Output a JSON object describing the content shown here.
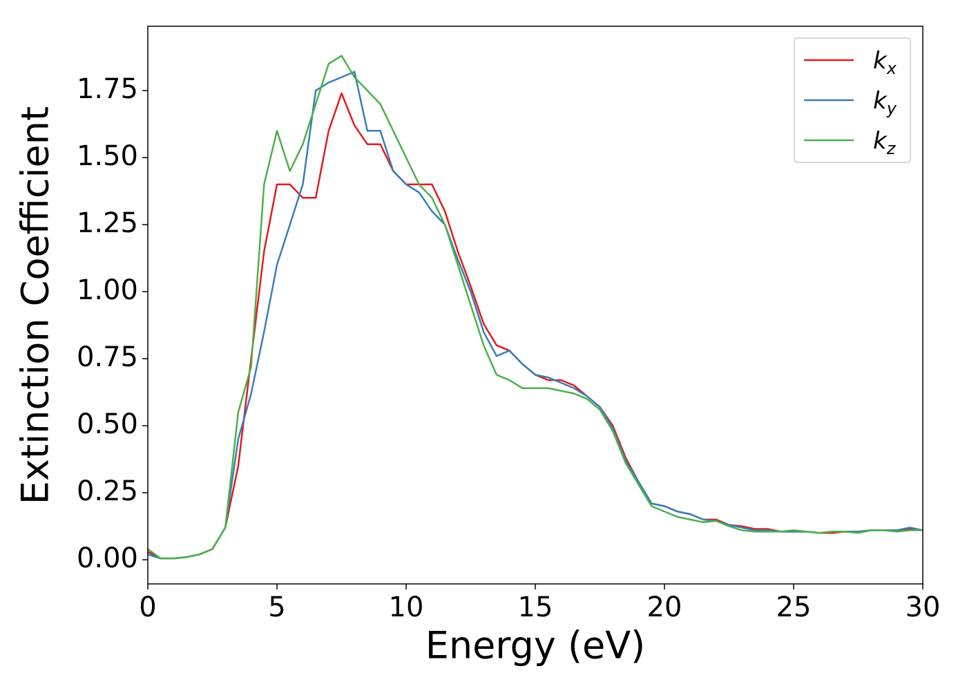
{
  "chart_data": {
    "type": "line",
    "x_label": "Energy (eV)",
    "y_label": "Extinction Coefficient",
    "xlim": [
      0,
      30
    ],
    "ylim": [
      -0.09,
      1.99
    ],
    "xticks": [
      0,
      5,
      10,
      15,
      20,
      25,
      30
    ],
    "yticks": [
      {
        "value": 0,
        "label": "0.00"
      },
      {
        "value": 0.25,
        "label": "0.25"
      },
      {
        "value": 0.5,
        "label": "0.50"
      },
      {
        "value": 0.75,
        "label": "0.75"
      },
      {
        "value": 1,
        "label": "1.00"
      },
      {
        "value": 1.25,
        "label": "1.25"
      },
      {
        "value": 1.5,
        "label": "1.50"
      },
      {
        "value": 1.75,
        "label": "1.75"
      }
    ],
    "grid": false,
    "legend": "upper right",
    "x": [
      0,
      0.5,
      1,
      1.5,
      2,
      2.5,
      3,
      3.5,
      4,
      4.5,
      5,
      5.5,
      6,
      6.5,
      7,
      7.5,
      8,
      8.5,
      9,
      9.5,
      10,
      10.5,
      11,
      11.5,
      12,
      12.5,
      13,
      13.5,
      14,
      14.5,
      15,
      15.5,
      16,
      16.5,
      17,
      17.5,
      18,
      18.5,
      19,
      19.5,
      20,
      20.5,
      21,
      21.5,
      22,
      22.5,
      23,
      23.5,
      24,
      24.5,
      25,
      25.5,
      26,
      26.5,
      27,
      27.5,
      28,
      28.5,
      29,
      29.5,
      30
    ],
    "series": [
      {
        "name": "kx",
        "color": "#e41a1c",
        "values": [
          0.03,
          0.005,
          0.005,
          0.01,
          0.02,
          0.04,
          0.12,
          0.35,
          0.75,
          1.15,
          1.4,
          1.4,
          1.35,
          1.35,
          1.6,
          1.74,
          1.62,
          1.55,
          1.55,
          1.45,
          1.4,
          1.4,
          1.4,
          1.3,
          1.15,
          1.02,
          0.88,
          0.8,
          0.78,
          0.73,
          0.69,
          0.67,
          0.67,
          0.65,
          0.61,
          0.57,
          0.5,
          0.38,
          0.29,
          0.21,
          0.2,
          0.18,
          0.17,
          0.15,
          0.15,
          0.13,
          0.125,
          0.115,
          0.115,
          0.105,
          0.105,
          0.105,
          0.1,
          0.1,
          0.105,
          0.105,
          0.11,
          0.11,
          0.11,
          0.115,
          0.11
        ]
      },
      {
        "name": "ky",
        "color": "#377eb8",
        "values": [
          0.02,
          0.005,
          0.005,
          0.01,
          0.02,
          0.04,
          0.12,
          0.45,
          0.62,
          0.85,
          1.1,
          1.25,
          1.4,
          1.75,
          1.78,
          1.8,
          1.82,
          1.6,
          1.6,
          1.45,
          1.4,
          1.37,
          1.3,
          1.25,
          1.12,
          1.0,
          0.85,
          0.76,
          0.78,
          0.73,
          0.69,
          0.68,
          0.66,
          0.64,
          0.61,
          0.57,
          0.49,
          0.37,
          0.29,
          0.21,
          0.2,
          0.18,
          0.17,
          0.15,
          0.145,
          0.13,
          0.12,
          0.11,
          0.11,
          0.105,
          0.105,
          0.105,
          0.1,
          0.105,
          0.105,
          0.105,
          0.11,
          0.11,
          0.11,
          0.12,
          0.11
        ]
      },
      {
        "name": "kz",
        "color": "#4daf4a",
        "values": [
          0.04,
          0.005,
          0.005,
          0.01,
          0.02,
          0.04,
          0.12,
          0.55,
          0.72,
          1.4,
          1.6,
          1.45,
          1.55,
          1.7,
          1.85,
          1.88,
          1.8,
          1.75,
          1.7,
          1.6,
          1.5,
          1.4,
          1.35,
          1.25,
          1.1,
          0.95,
          0.8,
          0.69,
          0.67,
          0.64,
          0.64,
          0.64,
          0.63,
          0.62,
          0.6,
          0.56,
          0.48,
          0.36,
          0.28,
          0.2,
          0.18,
          0.16,
          0.15,
          0.14,
          0.145,
          0.125,
          0.11,
          0.105,
          0.105,
          0.105,
          0.11,
          0.105,
          0.1,
          0.105,
          0.105,
          0.1,
          0.11,
          0.11,
          0.105,
          0.11,
          0.11
        ]
      }
    ]
  }
}
